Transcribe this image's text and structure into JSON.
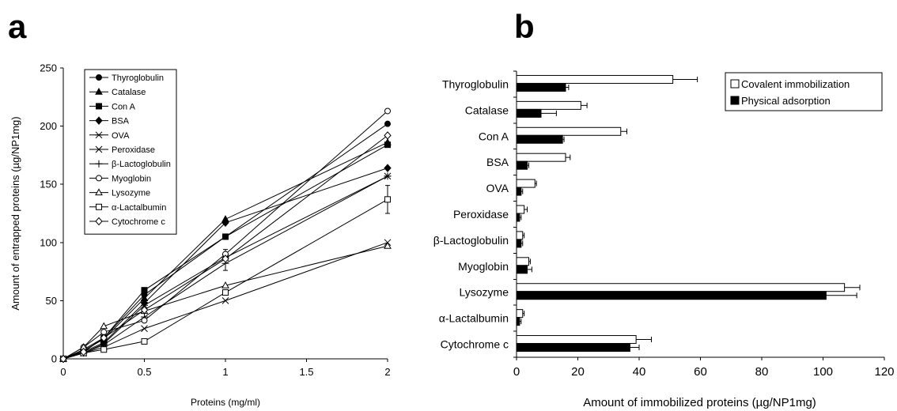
{
  "chart_data": [
    {
      "panel": "a",
      "type": "line",
      "title": "",
      "xlabel": "Proteins (mg/ml)",
      "ylabel": "Amount of entrapped proteins (µg/NP1mg)",
      "xlim": [
        0,
        2
      ],
      "ylim": [
        0,
        250
      ],
      "xticks": [
        "0",
        "0.5",
        "1",
        "1.5",
        "2"
      ],
      "xtick_values": [
        0,
        0.5,
        1,
        1.5,
        2
      ],
      "yticks": [
        "0",
        "50",
        "100",
        "150",
        "200",
        "250"
      ],
      "ytick_values": [
        0,
        50,
        100,
        150,
        200,
        250
      ],
      "legend_position": "top-left",
      "x": [
        0,
        0.125,
        0.25,
        0.5,
        1,
        2
      ],
      "series": [
        {
          "name": "Thyroglobulin",
          "marker": "circle-filled",
          "values": [
            0,
            8,
            18,
            55,
            105,
            202
          ]
        },
        {
          "name": "Catalase",
          "marker": "triangle-filled",
          "values": [
            0,
            7,
            17,
            52,
            120,
            186
          ]
        },
        {
          "name": "Con A",
          "marker": "square-filled",
          "values": [
            0,
            6,
            18,
            59,
            105,
            184
          ]
        },
        {
          "name": "BSA",
          "marker": "diamond-filled",
          "values": [
            0,
            6,
            14,
            48,
            117,
            164
          ]
        },
        {
          "name": "OVA",
          "marker": "asterisk",
          "values": [
            0,
            5,
            13,
            46,
            87,
            157
          ]
        },
        {
          "name": "Peroxidase",
          "marker": "x",
          "values": [
            0,
            5,
            10,
            26,
            50,
            100
          ]
        },
        {
          "name": "β-Lactoglobulin",
          "marker": "plus",
          "values": [
            0,
            5,
            12,
            36,
            82,
            157
          ]
        },
        {
          "name": "Myoglobin",
          "marker": "circle-open",
          "values": [
            0,
            10,
            23,
            33,
            90,
            213
          ]
        },
        {
          "name": "Lysozyme",
          "marker": "triangle-open",
          "values": [
            0,
            10,
            28,
            41,
            63,
            97
          ]
        },
        {
          "name": "α-Lactalbumin",
          "marker": "square-open",
          "values": [
            0,
            5,
            8,
            15,
            57,
            137
          ]
        },
        {
          "name": "Cytochrome c",
          "marker": "diamond-open",
          "values": [
            0,
            6,
            18,
            42,
            86,
            192
          ]
        }
      ],
      "error_bars": [
        {
          "series": "β-Lactoglobulin",
          "x": 1,
          "err": 6
        },
        {
          "series": "Myoglobin",
          "x": 1,
          "err": 4
        },
        {
          "series": "α-Lactalbumin",
          "x": 2,
          "err": 12
        }
      ]
    },
    {
      "panel": "b",
      "type": "bar",
      "orientation": "horizontal",
      "title": "",
      "xlabel": "Amount of immobilized proteins (µg/NP1mg)",
      "ylabel": "",
      "xlim": [
        0,
        120
      ],
      "xticks": [
        "0",
        "20",
        "40",
        "60",
        "80",
        "100",
        "120"
      ],
      "xtick_values": [
        0,
        20,
        40,
        60,
        80,
        100,
        120
      ],
      "legend_position": "top-right",
      "categories": [
        "Thyroglobulin",
        "Catalase",
        "Con A",
        "BSA",
        "OVA",
        "Peroxidase",
        "β-Lactoglobulin",
        "Myoglobin",
        "Lysozyme",
        "α-Lactalbumin",
        "Cytochrome c"
      ],
      "series": [
        {
          "name": "Covalent immobilization",
          "color": "#ffffff",
          "values": [
            51,
            21,
            34,
            16,
            6,
            2.5,
            2,
            4,
            107,
            2,
            39
          ],
          "errors": [
            8,
            2,
            2,
            1.5,
            0.5,
            1,
            0.5,
            0.5,
            5,
            0.5,
            5
          ]
        },
        {
          "name": "Physical adsorption",
          "color": "#000000",
          "values": [
            16,
            8,
            15,
            3.5,
            1.5,
            1,
            1.5,
            3.5,
            101,
            1,
            37
          ],
          "errors": [
            1,
            5,
            0.5,
            0.5,
            0.5,
            0.5,
            0.5,
            1.5,
            10,
            0.5,
            3
          ]
        }
      ]
    }
  ]
}
